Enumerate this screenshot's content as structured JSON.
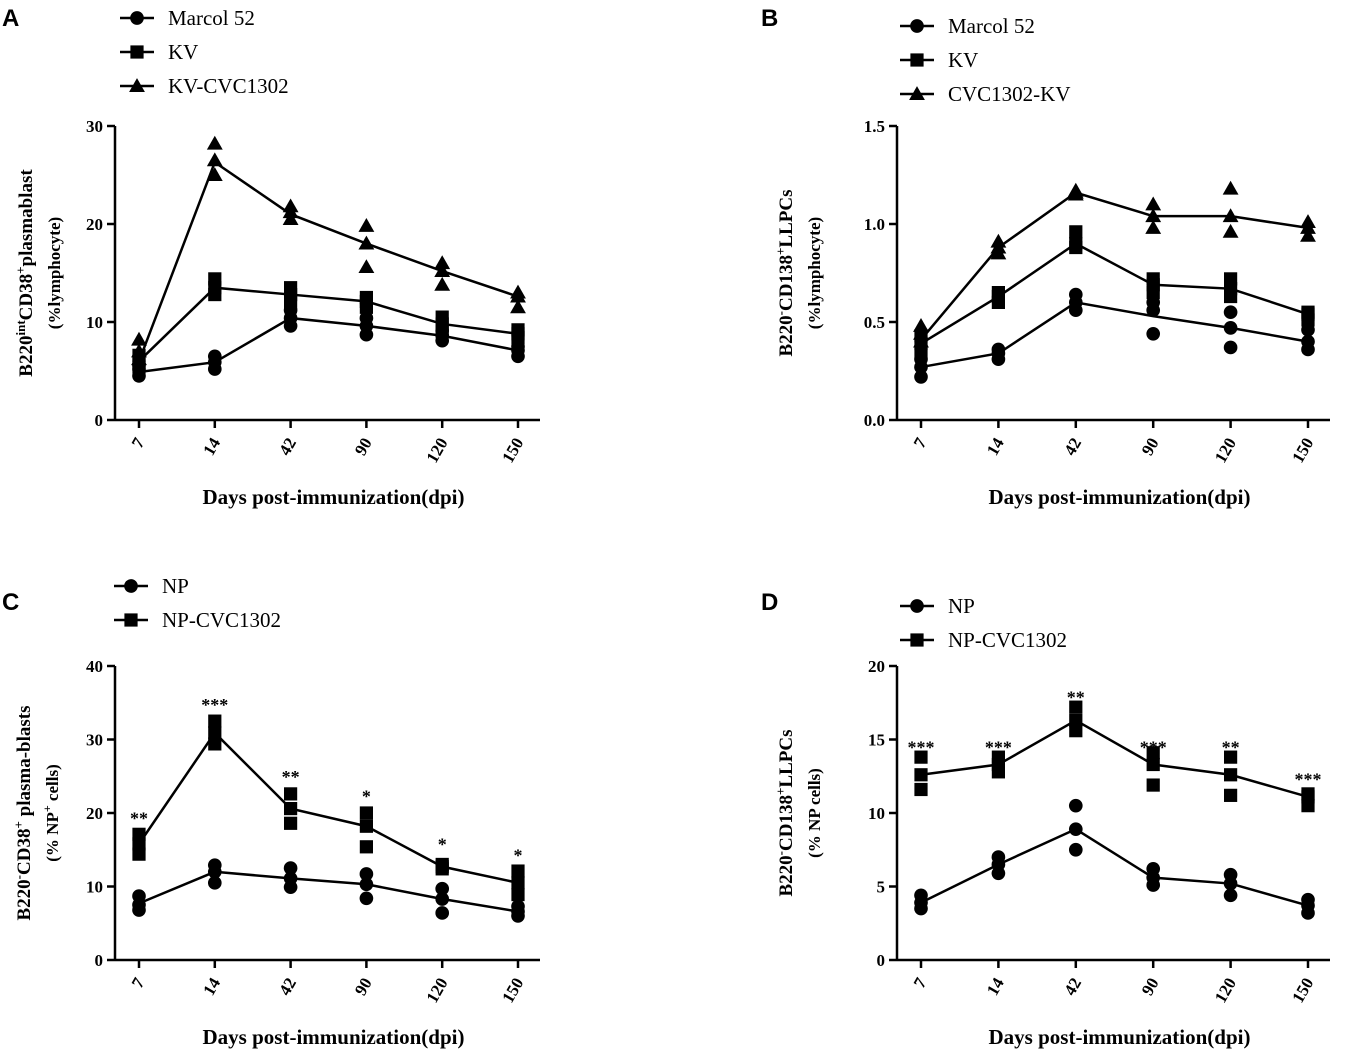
{
  "chart_data": [
    {
      "panel": "A",
      "type": "line",
      "categories": [
        "7",
        "14",
        "42",
        "90",
        "120",
        "150"
      ],
      "xlabel": "Days post-immunization(dpi)",
      "ylabel_main": [
        "B220",
        "int",
        "CD38",
        "+",
        "plasmablast"
      ],
      "ylabel_sub": "(%lymphocyte)",
      "ylim": [
        0,
        30
      ],
      "yticks": [
        0,
        10,
        20,
        30
      ],
      "series": [
        {
          "name": "Marcol 52",
          "marker": "circle",
          "mean": [
            4.9,
            5.9,
            10.4,
            9.6,
            8.6,
            7.1
          ],
          "points": [
            [
              4.5,
              5.2,
              5.6
            ],
            [
              5.2,
              5.9,
              6.5
            ],
            [
              9.6,
              10.4,
              11.2
            ],
            [
              8.7,
              9.6,
              10.4
            ],
            [
              8.1,
              8.6,
              9.1
            ],
            [
              6.5,
              7.1,
              7.5
            ]
          ]
        },
        {
          "name": "KV",
          "marker": "square",
          "mean": [
            6.0,
            13.5,
            12.8,
            12.1,
            9.8,
            8.8
          ],
          "points": [
            [
              5.4,
              6.0,
              6.6
            ],
            [
              12.8,
              13.5,
              14.4
            ],
            [
              12.0,
              12.8,
              13.5
            ],
            [
              11.5,
              12.1,
              12.5
            ],
            [
              9.1,
              9.8,
              10.5
            ],
            [
              8.4,
              8.8,
              9.2
            ]
          ]
        },
        {
          "name": "KV-CVC1302",
          "marker": "triangle",
          "mean": [
            6.0,
            26.3,
            21.0,
            18.0,
            15.2,
            12.6
          ],
          "points": [
            [
              6.2,
              7.0,
              8.2
            ],
            [
              25.0,
              26.5,
              28.2
            ],
            [
              20.5,
              21.2,
              21.8
            ],
            [
              15.6,
              18.0,
              19.8
            ],
            [
              13.8,
              15.2,
              16.0
            ],
            [
              11.5,
              12.6,
              13.0
            ]
          ]
        }
      ],
      "significance": []
    },
    {
      "panel": "B",
      "type": "line",
      "categories": [
        "7",
        "14",
        "42",
        "90",
        "120",
        "150"
      ],
      "xlabel": "Days post-immunization(dpi)",
      "ylabel_main": [
        "B220",
        "-",
        "CD138",
        "+",
        "LLPCs"
      ],
      "ylabel_sub": "(%lymphocyte)",
      "ylim": [
        0,
        1.5
      ],
      "yticks": [
        0.0,
        0.5,
        1.0,
        1.5
      ],
      "series": [
        {
          "name": "Marcol 52",
          "marker": "circle",
          "mean": [
            0.27,
            0.34,
            0.6,
            0.53,
            0.47,
            0.4
          ],
          "points": [
            [
              0.22,
              0.27,
              0.31
            ],
            [
              0.31,
              0.34,
              0.36
            ],
            [
              0.56,
              0.6,
              0.64
            ],
            [
              0.44,
              0.56,
              0.6
            ],
            [
              0.37,
              0.47,
              0.55
            ],
            [
              0.36,
              0.4,
              0.46
            ]
          ]
        },
        {
          "name": "KV",
          "marker": "square",
          "mean": [
            0.39,
            0.63,
            0.9,
            0.69,
            0.67,
            0.54
          ],
          "points": [
            [
              0.35,
              0.39,
              0.43
            ],
            [
              0.6,
              0.63,
              0.65
            ],
            [
              0.88,
              0.9,
              0.96
            ],
            [
              0.65,
              0.69,
              0.72
            ],
            [
              0.63,
              0.67,
              0.72
            ],
            [
              0.51,
              0.54,
              0.55
            ]
          ]
        },
        {
          "name": "CVC1302-KV",
          "marker": "triangle",
          "mean": [
            0.41,
            0.88,
            1.16,
            1.04,
            1.04,
            0.98
          ],
          "points": [
            [
              0.4,
              0.44,
              0.48
            ],
            [
              0.85,
              0.88,
              0.91
            ],
            [
              1.15,
              1.16,
              1.17
            ],
            [
              0.98,
              1.04,
              1.1
            ],
            [
              0.96,
              1.04,
              1.18
            ],
            [
              0.94,
              0.98,
              1.01
            ]
          ]
        }
      ],
      "significance": []
    },
    {
      "panel": "C",
      "type": "line",
      "categories": [
        "7",
        "14",
        "42",
        "90",
        "120",
        "150"
      ],
      "xlabel": "Days post-immunization(dpi)",
      "ylabel_main": [
        "B220",
        "-",
        "CD38",
        "+",
        " plasma-blasts"
      ],
      "ylabel_sub_parts": [
        "(% NP",
        "+",
        " cells)"
      ],
      "ylim": [
        0,
        40
      ],
      "yticks": [
        0,
        10,
        20,
        30,
        40
      ],
      "series": [
        {
          "name": "NP",
          "marker": "circle",
          "mean": [
            7.7,
            12.0,
            11.1,
            10.3,
            8.3,
            6.6
          ],
          "points": [
            [
              6.8,
              7.5,
              8.7
            ],
            [
              10.5,
              12.0,
              12.9
            ],
            [
              9.9,
              11.1,
              12.5
            ],
            [
              8.4,
              10.3,
              11.7
            ],
            [
              6.4,
              8.3,
              9.7
            ],
            [
              6.0,
              6.6,
              7.3
            ]
          ]
        },
        {
          "name": "NP-CVC1302",
          "marker": "square",
          "mean": [
            15.8,
            30.9,
            20.6,
            18.2,
            12.7,
            10.5
          ],
          "points": [
            [
              14.4,
              15.8,
              17.1
            ],
            [
              29.4,
              30.9,
              32.5
            ],
            [
              18.6,
              20.6,
              22.6
            ],
            [
              15.4,
              18.2,
              20.0
            ],
            [
              12.4,
              12.7,
              13.0
            ],
            [
              8.9,
              10.5,
              12.1
            ]
          ]
        }
      ],
      "significance": [
        "**",
        "***",
        "**",
        "*",
        "*",
        "*"
      ],
      "sig_values": [
        19.5,
        35.0,
        25.2,
        22.5,
        16.0,
        14.5
      ]
    },
    {
      "panel": "D",
      "type": "line",
      "categories": [
        "7",
        "14",
        "42",
        "90",
        "120",
        "150"
      ],
      "xlabel": "Days post-immunization(dpi)",
      "ylabel_main": [
        "B220",
        "-",
        "CD138",
        "+",
        "LLPCs"
      ],
      "ylabel_sub": "(% NP cells)",
      "ylim": [
        0,
        20
      ],
      "yticks": [
        0,
        5,
        10,
        15,
        20
      ],
      "series": [
        {
          "name": "NP",
          "marker": "circle",
          "mean": [
            3.9,
            6.5,
            8.9,
            5.6,
            5.2,
            3.7
          ],
          "points": [
            [
              3.5,
              3.9,
              4.4
            ],
            [
              5.9,
              6.5,
              7.0
            ],
            [
              7.5,
              8.9,
              10.5
            ],
            [
              5.1,
              5.6,
              6.2
            ],
            [
              4.4,
              5.2,
              5.8
            ],
            [
              3.2,
              3.7,
              4.1
            ]
          ]
        },
        {
          "name": "NP-CVC1302",
          "marker": "square",
          "mean": [
            12.6,
            13.3,
            16.3,
            13.3,
            12.6,
            11.1
          ],
          "points": [
            [
              11.6,
              12.6,
              13.8
            ],
            [
              12.8,
              13.3,
              13.8
            ],
            [
              15.6,
              16.3,
              17.2
            ],
            [
              11.9,
              13.3,
              14.1
            ],
            [
              11.2,
              12.6,
              13.8
            ],
            [
              10.5,
              11.1,
              11.3
            ]
          ]
        }
      ],
      "significance": [
        "***",
        "***",
        "**",
        "***",
        "**",
        "***"
      ],
      "sig_values": [
        14.6,
        14.6,
        18.0,
        14.6,
        14.6,
        12.4
      ]
    }
  ]
}
